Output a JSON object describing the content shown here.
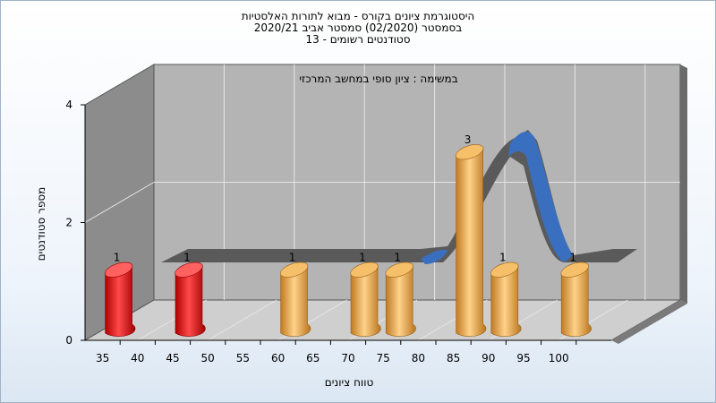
{
  "chart_data": {
    "type": "bar",
    "title": [
      "היסטוגרמת ציונים בקורס - מבוא לתורות האלסטיות",
      "בסמסטר  (02/2020)  סמסטר אביב 2020/21",
      "סטודנטים רשומים - 13"
    ],
    "subtitle": "במשימה : ציון סופי במחשב המרכזי",
    "xlabel": "טווח ציונים",
    "ylabel": "מספר סטודנטים",
    "categories": [
      "35",
      "40",
      "45",
      "50",
      "55",
      "60",
      "65",
      "70",
      "75",
      "80",
      "85",
      "90",
      "95",
      "100"
    ],
    "values": [
      1,
      0,
      1,
      0,
      0,
      1,
      0,
      1,
      1,
      0,
      3,
      1,
      0,
      1
    ],
    "ylim": [
      0,
      4
    ],
    "yticks": [
      "0",
      "2",
      "4"
    ],
    "bar_colors": {
      "failing": "#e01414",
      "passing": "#e8a845"
    },
    "curve_colors": {
      "band": "#5a5a5a",
      "band_front": "#3a6fc0"
    },
    "grid": true
  }
}
